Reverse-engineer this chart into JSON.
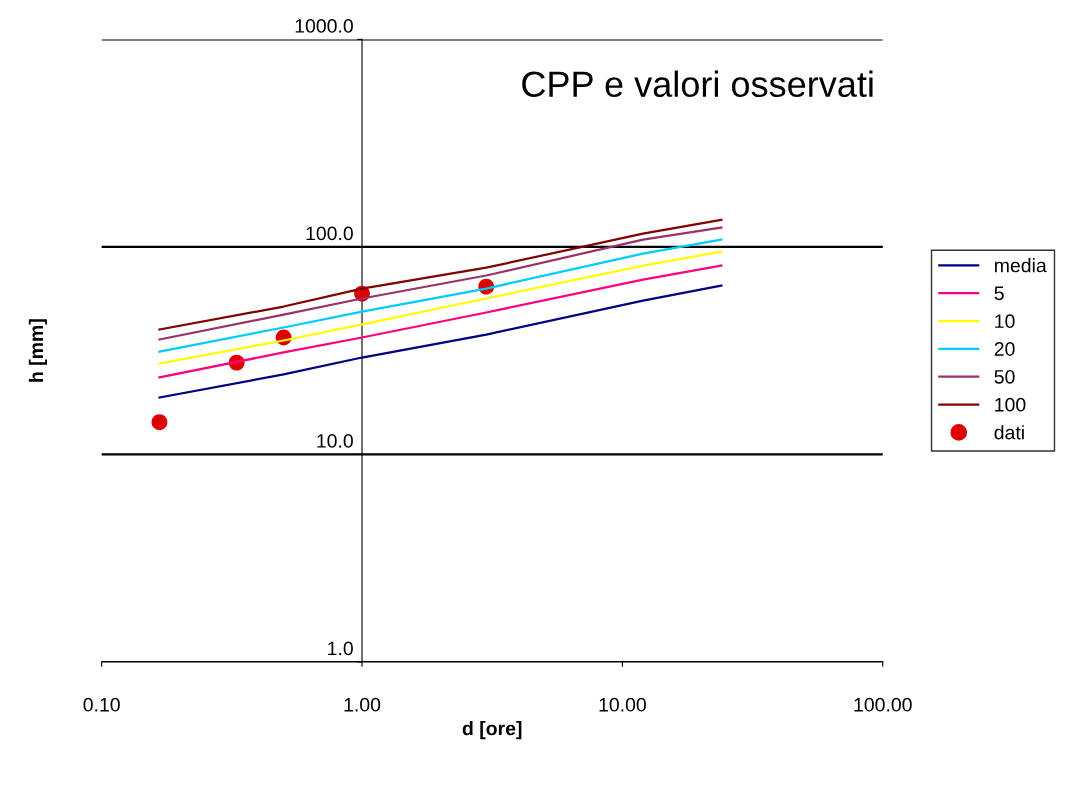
{
  "chart_data": {
    "type": "line",
    "title": "CPP e valori osservati",
    "xlabel": "d [ore]",
    "ylabel": "h [mm]",
    "log": "xy",
    "xlim": [
      0.1,
      100
    ],
    "ylim": [
      1,
      1000
    ],
    "xticks": [
      {
        "value": 0.1,
        "label": "0.10"
      },
      {
        "value": 1,
        "label": "1.00"
      },
      {
        "value": 10,
        "label": "10.00"
      },
      {
        "value": 100,
        "label": "100.00"
      }
    ],
    "yticks": [
      {
        "value": 1,
        "label": "1.0"
      },
      {
        "value": 10,
        "label": "10.0"
      },
      {
        "value": 100,
        "label": "100.0"
      },
      {
        "value": 1000,
        "label": "1000.0"
      }
    ],
    "grid": "y",
    "legend": "right",
    "marker": "none",
    "line_style": "solid",
    "series": [
      {
        "name": "media",
        "color": "#000080",
        "x": [
          0.1667,
          0.5,
          1,
          3,
          12,
          24
        ],
        "values": [
          18.8,
          24.3,
          29.3,
          37.8,
          55.1,
          65.1
        ]
      },
      {
        "name": "5",
        "color": "#ff0080",
        "x": [
          0.1667,
          0.5,
          1,
          3,
          12,
          24
        ],
        "values": [
          23.5,
          31.0,
          36.6,
          48.3,
          69.6,
          81.3
        ]
      },
      {
        "name": "10",
        "color": "#ffff00",
        "x": [
          0.1667,
          0.5,
          1,
          3,
          12,
          24
        ],
        "values": [
          27.4,
          35.4,
          42.3,
          56.4,
          81.3,
          94.9
        ]
      },
      {
        "name": "20",
        "color": "#00ccff",
        "x": [
          0.1667,
          0.5,
          1,
          3,
          12,
          24
        ],
        "values": [
          31.3,
          40.9,
          48.8,
          63.0,
          92.9,
          108.4
        ]
      },
      {
        "name": "50",
        "color": "#993366",
        "x": [
          0.1667,
          0.5,
          1,
          3,
          12,
          24
        ],
        "values": [
          35.8,
          47.2,
          56.4,
          72.8,
          108.4,
          123.9
        ]
      },
      {
        "name": "100",
        "color": "#800000",
        "x": [
          0.1667,
          0.5,
          1,
          3,
          12,
          24
        ],
        "values": [
          40.0,
          51.6,
          63.0,
          79.4,
          115.9,
          135.2
        ]
      },
      {
        "name": "dati",
        "type": "scatter",
        "marker": "circle",
        "color": "#dd0000",
        "x": [
          0.1667,
          0.33,
          0.5,
          1,
          3
        ],
        "values": [
          14.3,
          27.7,
          36.6,
          59.6,
          64.4
        ]
      }
    ]
  }
}
